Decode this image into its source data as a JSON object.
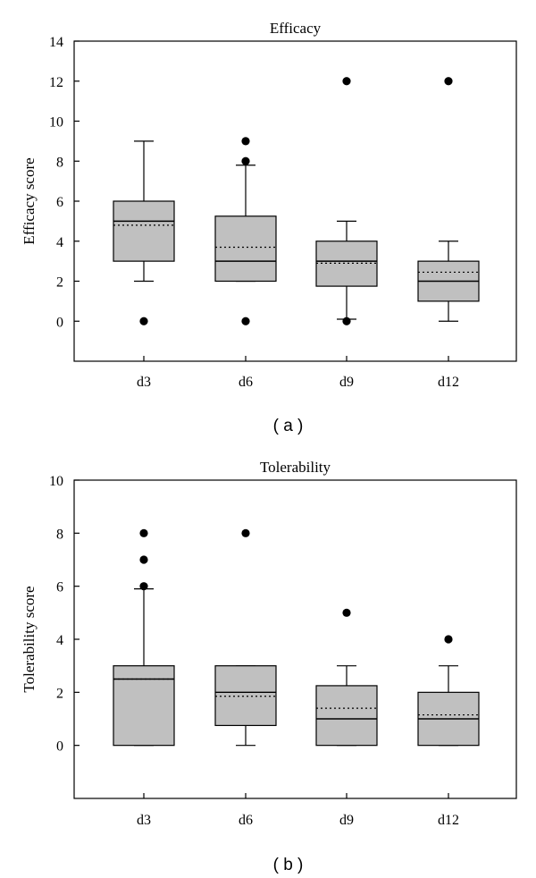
{
  "chart_data": [
    {
      "type": "boxplot",
      "title": "Efficacy",
      "ylabel": "Efficacy score",
      "xlabel": "",
      "ylim": [
        -2,
        14
      ],
      "yticks": [
        0,
        2,
        4,
        6,
        8,
        10,
        12,
        14
      ],
      "caption": "( a )",
      "categories": [
        "d3",
        "d6",
        "d9",
        "d12"
      ],
      "boxes": [
        {
          "label": "d3",
          "whisker_low": 2,
          "q1": 3,
          "median": 5,
          "mean": 4.8,
          "q3": 6,
          "whisker_high": 9,
          "outliers": [
            0
          ]
        },
        {
          "label": "d6",
          "whisker_low": 2,
          "q1": 2,
          "median": 3,
          "mean": 3.7,
          "q3": 5.25,
          "whisker_high": 7.8,
          "outliers": [
            0,
            8,
            9
          ]
        },
        {
          "label": "d9",
          "whisker_low": 0.1,
          "q1": 1.75,
          "median": 3,
          "mean": 2.9,
          "q3": 4,
          "whisker_high": 5,
          "outliers": [
            0,
            12
          ]
        },
        {
          "label": "d12",
          "whisker_low": 0,
          "q1": 1,
          "median": 2,
          "mean": 2.45,
          "q3": 3,
          "whisker_high": 4,
          "outliers": [
            12
          ]
        }
      ]
    },
    {
      "type": "boxplot",
      "title": "Tolerability",
      "ylabel": "Tolerability score",
      "xlabel": "",
      "ylim": [
        -2,
        10
      ],
      "yticks": [
        0,
        2,
        4,
        6,
        8,
        10
      ],
      "caption": "( b )",
      "categories": [
        "d3",
        "d6",
        "d9",
        "d12"
      ],
      "boxes": [
        {
          "label": "d3",
          "whisker_low": 0,
          "q1": 0,
          "median": 2.5,
          "mean": 2.5,
          "q3": 3,
          "whisker_high": 5.9,
          "outliers": [
            6,
            7,
            8
          ]
        },
        {
          "label": "d6",
          "whisker_low": 0,
          "q1": 0.75,
          "median": 2,
          "mean": 1.85,
          "q3": 3,
          "whisker_high": 3,
          "outliers": [
            8
          ]
        },
        {
          "label": "d9",
          "whisker_low": 0,
          "q1": 0,
          "median": 1,
          "mean": 1.4,
          "q3": 2.25,
          "whisker_high": 3,
          "outliers": [
            5
          ]
        },
        {
          "label": "d12",
          "whisker_low": 0,
          "q1": 0,
          "median": 1,
          "mean": 1.15,
          "q3": 2,
          "whisker_high": 3,
          "outliers": [
            4
          ]
        }
      ]
    }
  ]
}
